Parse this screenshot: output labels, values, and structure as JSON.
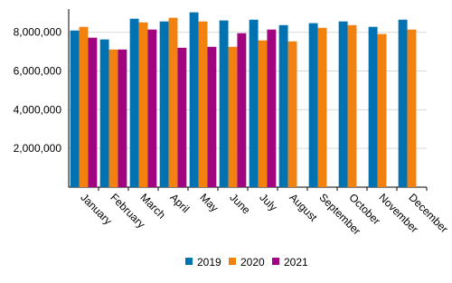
{
  "chart_data": {
    "type": "bar",
    "categories": [
      "January",
      "February",
      "March",
      "April",
      "May",
      "June",
      "July",
      "August",
      "September",
      "October",
      "November",
      "December"
    ],
    "series": [
      {
        "name": "2019",
        "color": "#0072b2",
        "values": [
          8090000,
          7630000,
          8700000,
          8560000,
          9030000,
          8610000,
          8650000,
          8370000,
          8470000,
          8560000,
          8280000,
          8650000
        ]
      },
      {
        "name": "2020",
        "color": "#f28110",
        "values": [
          8280000,
          7110000,
          8510000,
          8750000,
          8560000,
          7250000,
          7580000,
          7530000,
          8230000,
          8370000,
          7910000,
          8140000
        ]
      },
      {
        "name": "2021",
        "color": "#a0057f",
        "values": [
          7720000,
          7110000,
          8140000,
          7200000,
          7250000,
          7950000,
          8140000,
          null,
          null,
          null,
          null,
          null
        ]
      }
    ],
    "ylim": [
      0,
      9200000
    ],
    "yticks": [
      {
        "value": 2000000,
        "label": "2,000,000"
      },
      {
        "value": 4000000,
        "label": "4,000,000"
      },
      {
        "value": 6000000,
        "label": "6,000,000"
      },
      {
        "value": 8000000,
        "label": "8,000,000"
      }
    ],
    "grid": true
  }
}
